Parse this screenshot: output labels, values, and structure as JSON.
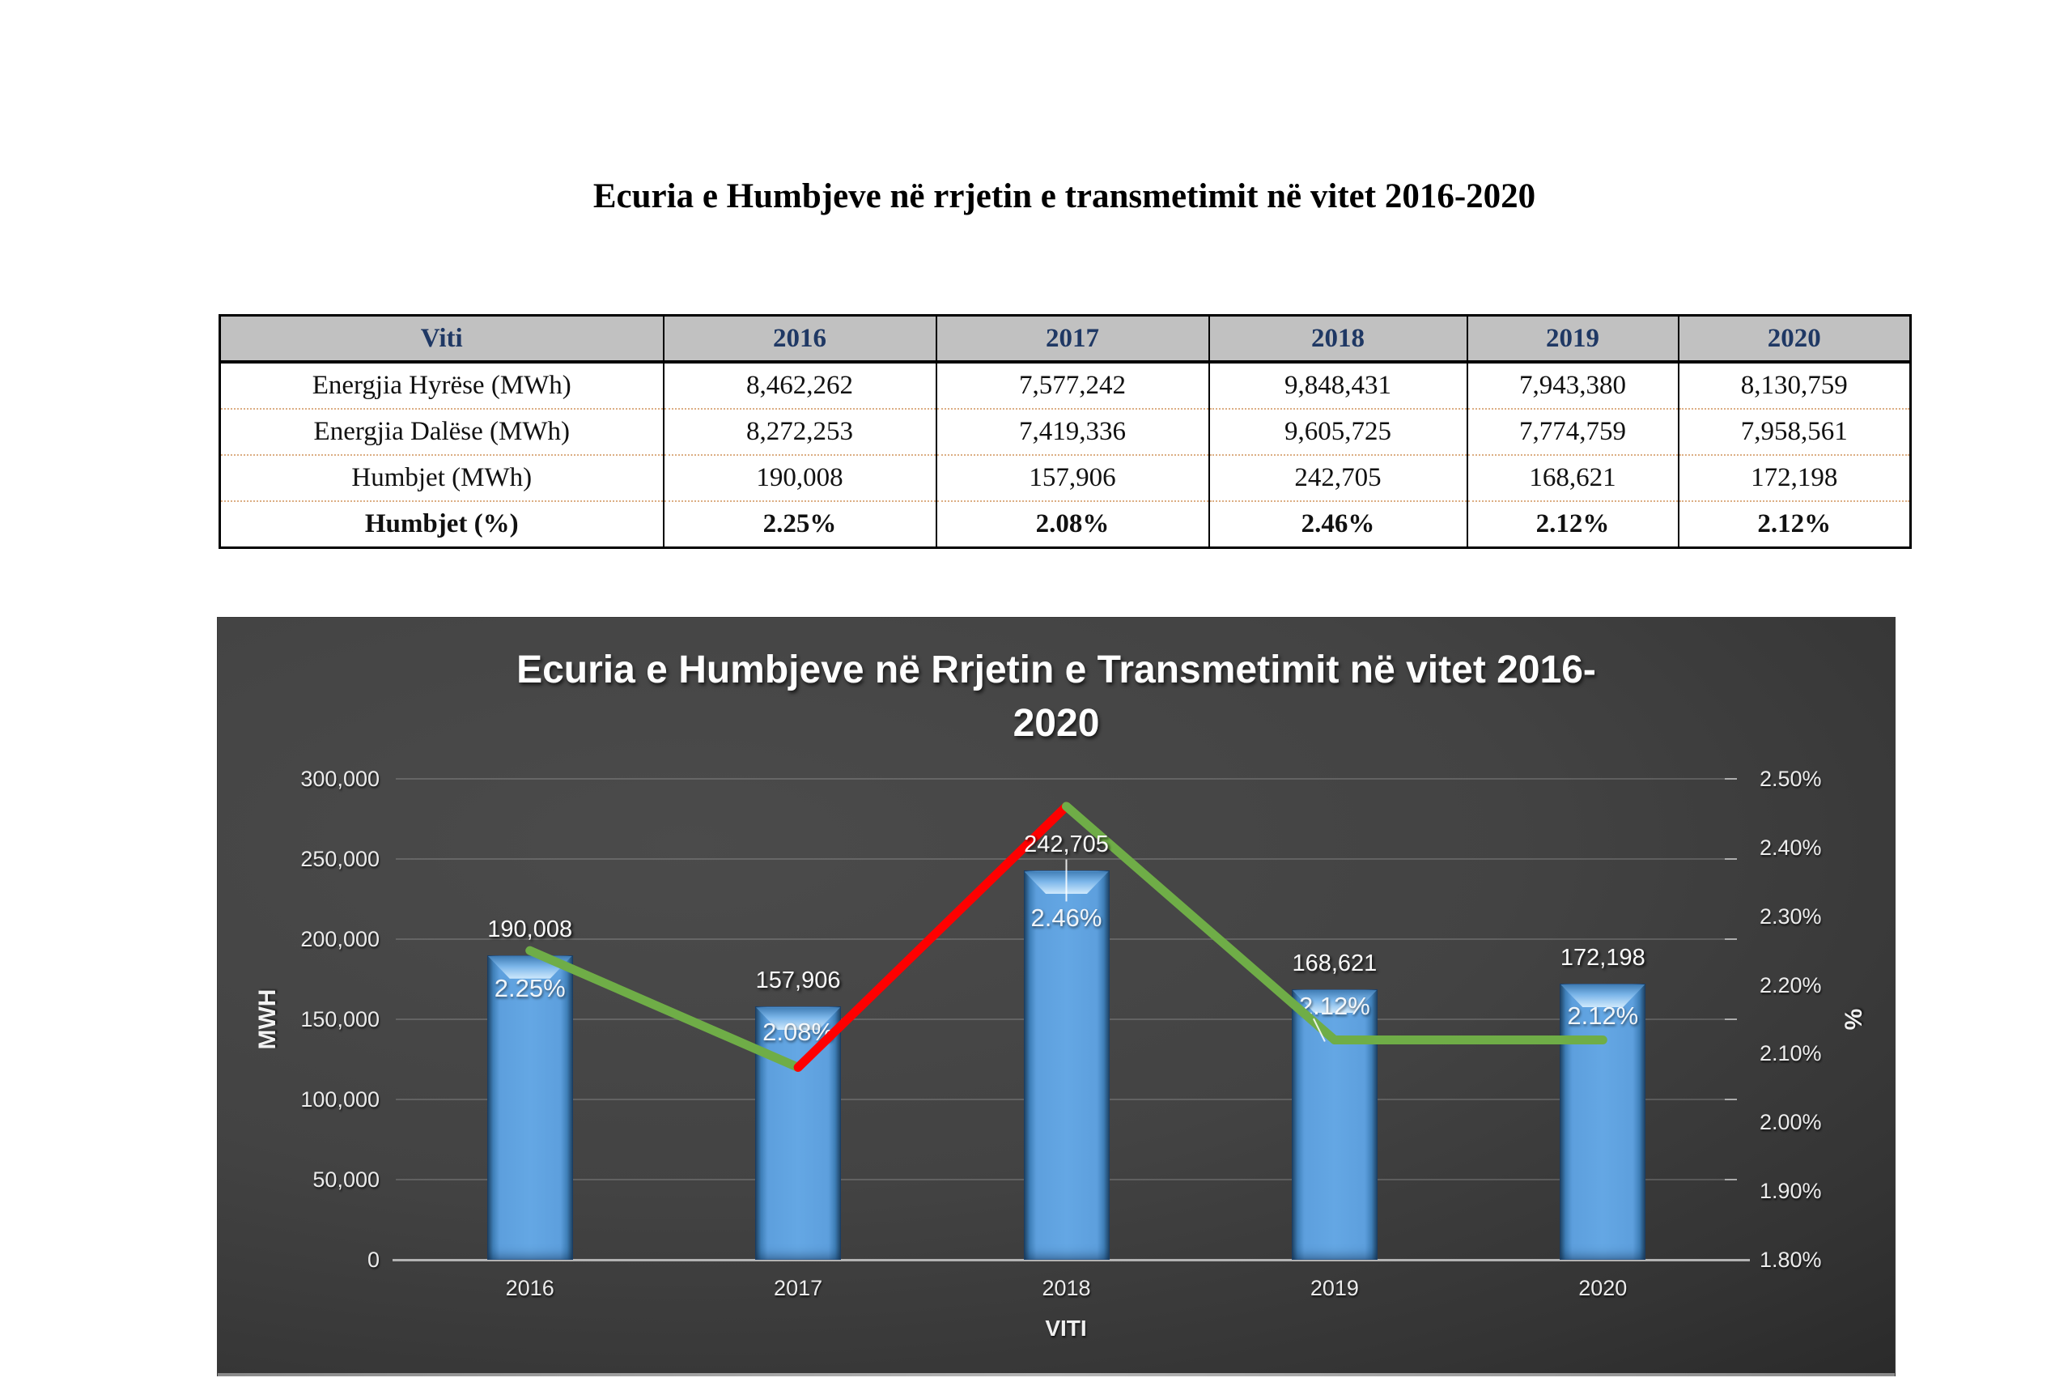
{
  "doc": {
    "title": "Ecuria e Humbjeve në rrjetin e transmetimit në vitet 2016-2020"
  },
  "table": {
    "header": [
      "Viti",
      "2016",
      "2017",
      "2018",
      "2019",
      "2020"
    ],
    "header_text_color": "#1F3864",
    "header_bg": "#C1C1C1",
    "rows": [
      {
        "label": "Energjia Hyrëse (MWh)",
        "values": [
          "8,462,262",
          "7,577,242",
          "9,848,431",
          "7,943,380",
          "8,130,759"
        ],
        "bold": false
      },
      {
        "label": "Energjia Dalëse (MWh)",
        "values": [
          "8,272,253",
          "7,419,336",
          "9,605,725",
          "7,774,759",
          "7,958,561"
        ],
        "bold": false
      },
      {
        "label": "Humbjet (MWh)",
        "values": [
          "190,008",
          "157,906",
          "242,705",
          "168,621",
          "172,198"
        ],
        "bold": false
      },
      {
        "label": "Humbjet (%)",
        "values": [
          "2.25%",
          "2.08%",
          "2.46%",
          "2.12%",
          "2.12%"
        ],
        "bold": true
      }
    ]
  },
  "chart_data": {
    "type": "bar",
    "title_lines": [
      "Ecuria e Humbjeve në Rrjetin e Transmetimit në vitet 2016-",
      "2020"
    ],
    "categories": [
      "2016",
      "2017",
      "2018",
      "2019",
      "2020"
    ],
    "series": [
      {
        "name": "Humbjet (MWh)",
        "type": "bar",
        "axis": "left",
        "values": [
          190008,
          157906,
          242705,
          168621,
          172198
        ],
        "labels": [
          "190,008",
          "157,906",
          "242,705",
          "168,621",
          "172,198"
        ],
        "color": "#5C9FDE"
      },
      {
        "name": "Humbjet (%)",
        "type": "line",
        "axis": "right",
        "values": [
          2.25,
          2.08,
          2.46,
          2.12,
          2.12
        ],
        "labels": [
          "2.25%",
          "2.08%",
          "2.46%",
          "2.12%",
          "2.12%"
        ],
        "segment_colors": [
          "#6FAD47",
          "#FF0000",
          "#6FAD47",
          "#6FAD47"
        ]
      }
    ],
    "leader_lines": [
      {
        "category": "2018",
        "shape": "vertical"
      },
      {
        "category": "2019",
        "shape": "diagonal"
      }
    ],
    "left_axis": {
      "title": "MWH",
      "min": 0,
      "max": 300000,
      "step": 50000,
      "tick_labels": [
        "0",
        "50,000",
        "100,000",
        "150,000",
        "200,000",
        "250,000",
        "300,000"
      ]
    },
    "right_axis": {
      "title": "%",
      "min": 1.8,
      "max": 2.5,
      "step": 0.1,
      "tick_labels": [
        "1.80%",
        "1.90%",
        "2.00%",
        "2.10%",
        "2.20%",
        "2.30%",
        "2.40%",
        "2.50%"
      ]
    },
    "x_axis": {
      "title": "VITI"
    },
    "grid": true,
    "legend": "none"
  }
}
